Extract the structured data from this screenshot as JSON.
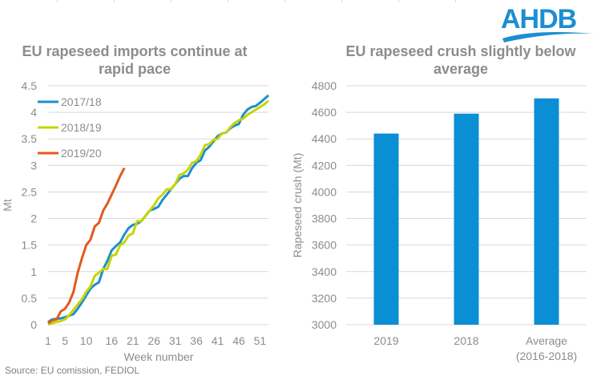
{
  "logo": {
    "text": "AHDB",
    "color": "#1b8fd1"
  },
  "source": "Source: EU comission, FEDIOL",
  "chart_data": [
    {
      "type": "line",
      "title": "EU rapeseed imports continue at rapid pace",
      "title_lines": [
        "EU rapeseed imports continue at",
        "rapid pace"
      ],
      "xlabel": "Week number",
      "ylabel": "Mt",
      "xlim": [
        1,
        53
      ],
      "ylim": [
        0,
        4.5
      ],
      "yticks": [
        0,
        0.5,
        1,
        1.5,
        2,
        2.5,
        3,
        3.5,
        4,
        4.5
      ],
      "ytick_labels": [
        "0",
        "0.5",
        "1",
        "1.5",
        "2",
        "2.5",
        "3",
        "3.5",
        "4",
        "4.5"
      ],
      "xticks": [
        1,
        5,
        10,
        16,
        21,
        26,
        31,
        36,
        41,
        46,
        51
      ],
      "xtick_labels": [
        "1",
        "5",
        "10",
        "16",
        "21",
        "26",
        "31",
        "36",
        "41",
        "46",
        "51"
      ],
      "grid": true,
      "legend_position": "top-left",
      "series": [
        {
          "name": "2017/18",
          "color": "#1b8fd1",
          "x": [
            1,
            2,
            3,
            4,
            5,
            6,
            7,
            8,
            9,
            10,
            11,
            12,
            13,
            14,
            15,
            16,
            17,
            18,
            19,
            20,
            21,
            22,
            23,
            24,
            25,
            26,
            27,
            28,
            29,
            30,
            31,
            32,
            33,
            34,
            35,
            36,
            37,
            38,
            39,
            40,
            41,
            42,
            43,
            44,
            45,
            46,
            47,
            48,
            49,
            50,
            51,
            52,
            53
          ],
          "values": [
            0.05,
            0.1,
            0.11,
            0.12,
            0.14,
            0.17,
            0.2,
            0.3,
            0.42,
            0.55,
            0.68,
            0.75,
            0.8,
            1.05,
            1.2,
            1.4,
            1.48,
            1.55,
            1.7,
            1.82,
            1.88,
            1.9,
            1.95,
            2.05,
            2.15,
            2.18,
            2.22,
            2.35,
            2.45,
            2.55,
            2.65,
            2.75,
            2.8,
            2.8,
            2.95,
            3.05,
            3.1,
            3.28,
            3.35,
            3.45,
            3.55,
            3.6,
            3.62,
            3.7,
            3.75,
            3.78,
            3.95,
            4.05,
            4.1,
            4.12,
            4.18,
            4.25,
            4.32
          ]
        },
        {
          "name": "2018/19",
          "color": "#c8d400",
          "x": [
            1,
            2,
            3,
            4,
            5,
            6,
            7,
            8,
            9,
            10,
            11,
            12,
            13,
            14,
            15,
            16,
            17,
            18,
            19,
            20,
            21,
            22,
            23,
            24,
            25,
            26,
            27,
            28,
            29,
            30,
            31,
            32,
            33,
            34,
            35,
            36,
            37,
            38,
            39,
            40,
            41,
            42,
            43,
            44,
            45,
            46,
            47,
            48,
            49,
            50,
            51,
            52,
            53
          ],
          "values": [
            0.0,
            0.03,
            0.05,
            0.07,
            0.1,
            0.18,
            0.28,
            0.38,
            0.48,
            0.62,
            0.72,
            0.92,
            0.98,
            1.05,
            1.05,
            1.3,
            1.32,
            1.5,
            1.55,
            1.68,
            1.72,
            1.95,
            1.95,
            2.05,
            2.15,
            2.25,
            2.38,
            2.45,
            2.55,
            2.55,
            2.65,
            2.82,
            2.85,
            2.92,
            3.05,
            3.08,
            3.2,
            3.38,
            3.4,
            3.48,
            3.5,
            3.6,
            3.62,
            3.72,
            3.8,
            3.85,
            3.88,
            3.95,
            4.0,
            4.05,
            4.1,
            4.15,
            4.22
          ]
        },
        {
          "name": "2019/20",
          "color": "#e05a1f",
          "x": [
            1,
            2,
            3,
            4,
            5,
            6,
            7,
            8,
            9,
            10,
            11,
            12,
            13,
            14,
            15,
            16,
            17,
            18,
            19
          ],
          "values": [
            0.03,
            0.08,
            0.1,
            0.25,
            0.3,
            0.42,
            0.62,
            0.98,
            1.25,
            1.5,
            1.6,
            1.85,
            1.92,
            2.15,
            2.28,
            2.45,
            2.62,
            2.8,
            2.95
          ]
        }
      ]
    },
    {
      "type": "bar",
      "title": "EU rapeseed crush slightly below average",
      "title_lines": [
        "EU rapeseed crush slightly below",
        "average"
      ],
      "xlabel": "",
      "ylabel": "Rapeseed crush (Mt)",
      "ylim": [
        3000,
        4800
      ],
      "yticks": [
        3000,
        3200,
        3400,
        3600,
        3800,
        4000,
        4200,
        4400,
        4600,
        4800
      ],
      "ytick_labels": [
        "3000",
        "3200",
        "3400",
        "3600",
        "3800",
        "4000",
        "4200",
        "4400",
        "4600",
        "4800"
      ],
      "categories": [
        "2019",
        "2018",
        "Average (2016-2018)"
      ],
      "category_lines": [
        [
          "2019"
        ],
        [
          "2018"
        ],
        [
          "Average",
          "(2016-2018)"
        ]
      ],
      "values": [
        4440,
        4590,
        4705
      ],
      "color": "#0a8fd4",
      "grid": true
    }
  ]
}
